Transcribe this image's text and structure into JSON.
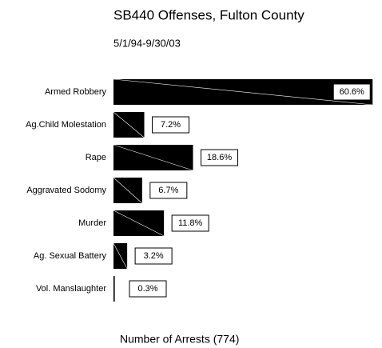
{
  "chart_data": {
    "type": "bar",
    "orientation": "horizontal",
    "title": "SB440 Offenses, Fulton County",
    "subtitle": "5/1/94-9/30/03",
    "x_label": "Number of Arrests (774)",
    "categories": [
      "Armed Robbery",
      "Ag.Child Molestation",
      "Rape",
      "Aggravated Sodomy",
      "Murder",
      "Ag. Sexual Battery",
      "Vol. Manslaughter"
    ],
    "values": [
      60.6,
      7.2,
      18.6,
      6.7,
      11.8,
      3.2,
      0.3
    ],
    "value_labels": [
      "60.6%",
      "7.2%",
      "18.6%",
      "6.7%",
      "11.8%",
      "3.2%",
      "0.3%"
    ],
    "color": "#000000"
  }
}
